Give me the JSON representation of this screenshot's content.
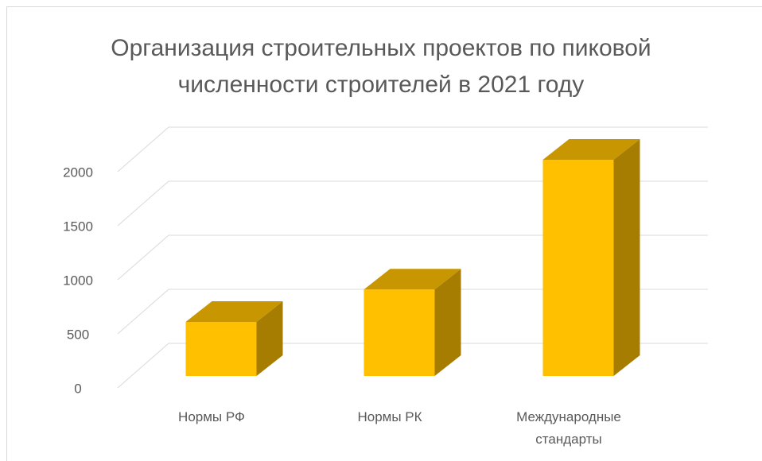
{
  "chart_data": {
    "type": "bar3d",
    "title": "Организация строительных проектов по пиковой численности строителей в 2021 году",
    "categories": [
      "Нормы РФ",
      "Нормы РК",
      "Международные стандарты"
    ],
    "values": [
      500,
      800,
      2000
    ],
    "color": "#ffc000",
    "ylim": [
      0,
      2000
    ],
    "yticks": [
      0,
      500,
      1000,
      1500,
      2000
    ],
    "grid": true
  }
}
